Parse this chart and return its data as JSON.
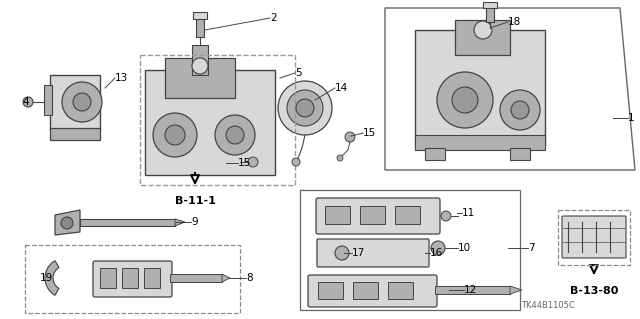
{
  "bg_color": "#ffffff",
  "fig_width": 6.4,
  "fig_height": 3.19,
  "watermark": "TK44B1105C",
  "b111_label": "B-11-1",
  "b1380_label": "B-13-80",
  "line_color": "#444444",
  "text_color": "#000000",
  "gray_light": "#d8d8d8",
  "gray_mid": "#b0b0b0",
  "gray_dark": "#888888",
  "dash_color": "#888888"
}
